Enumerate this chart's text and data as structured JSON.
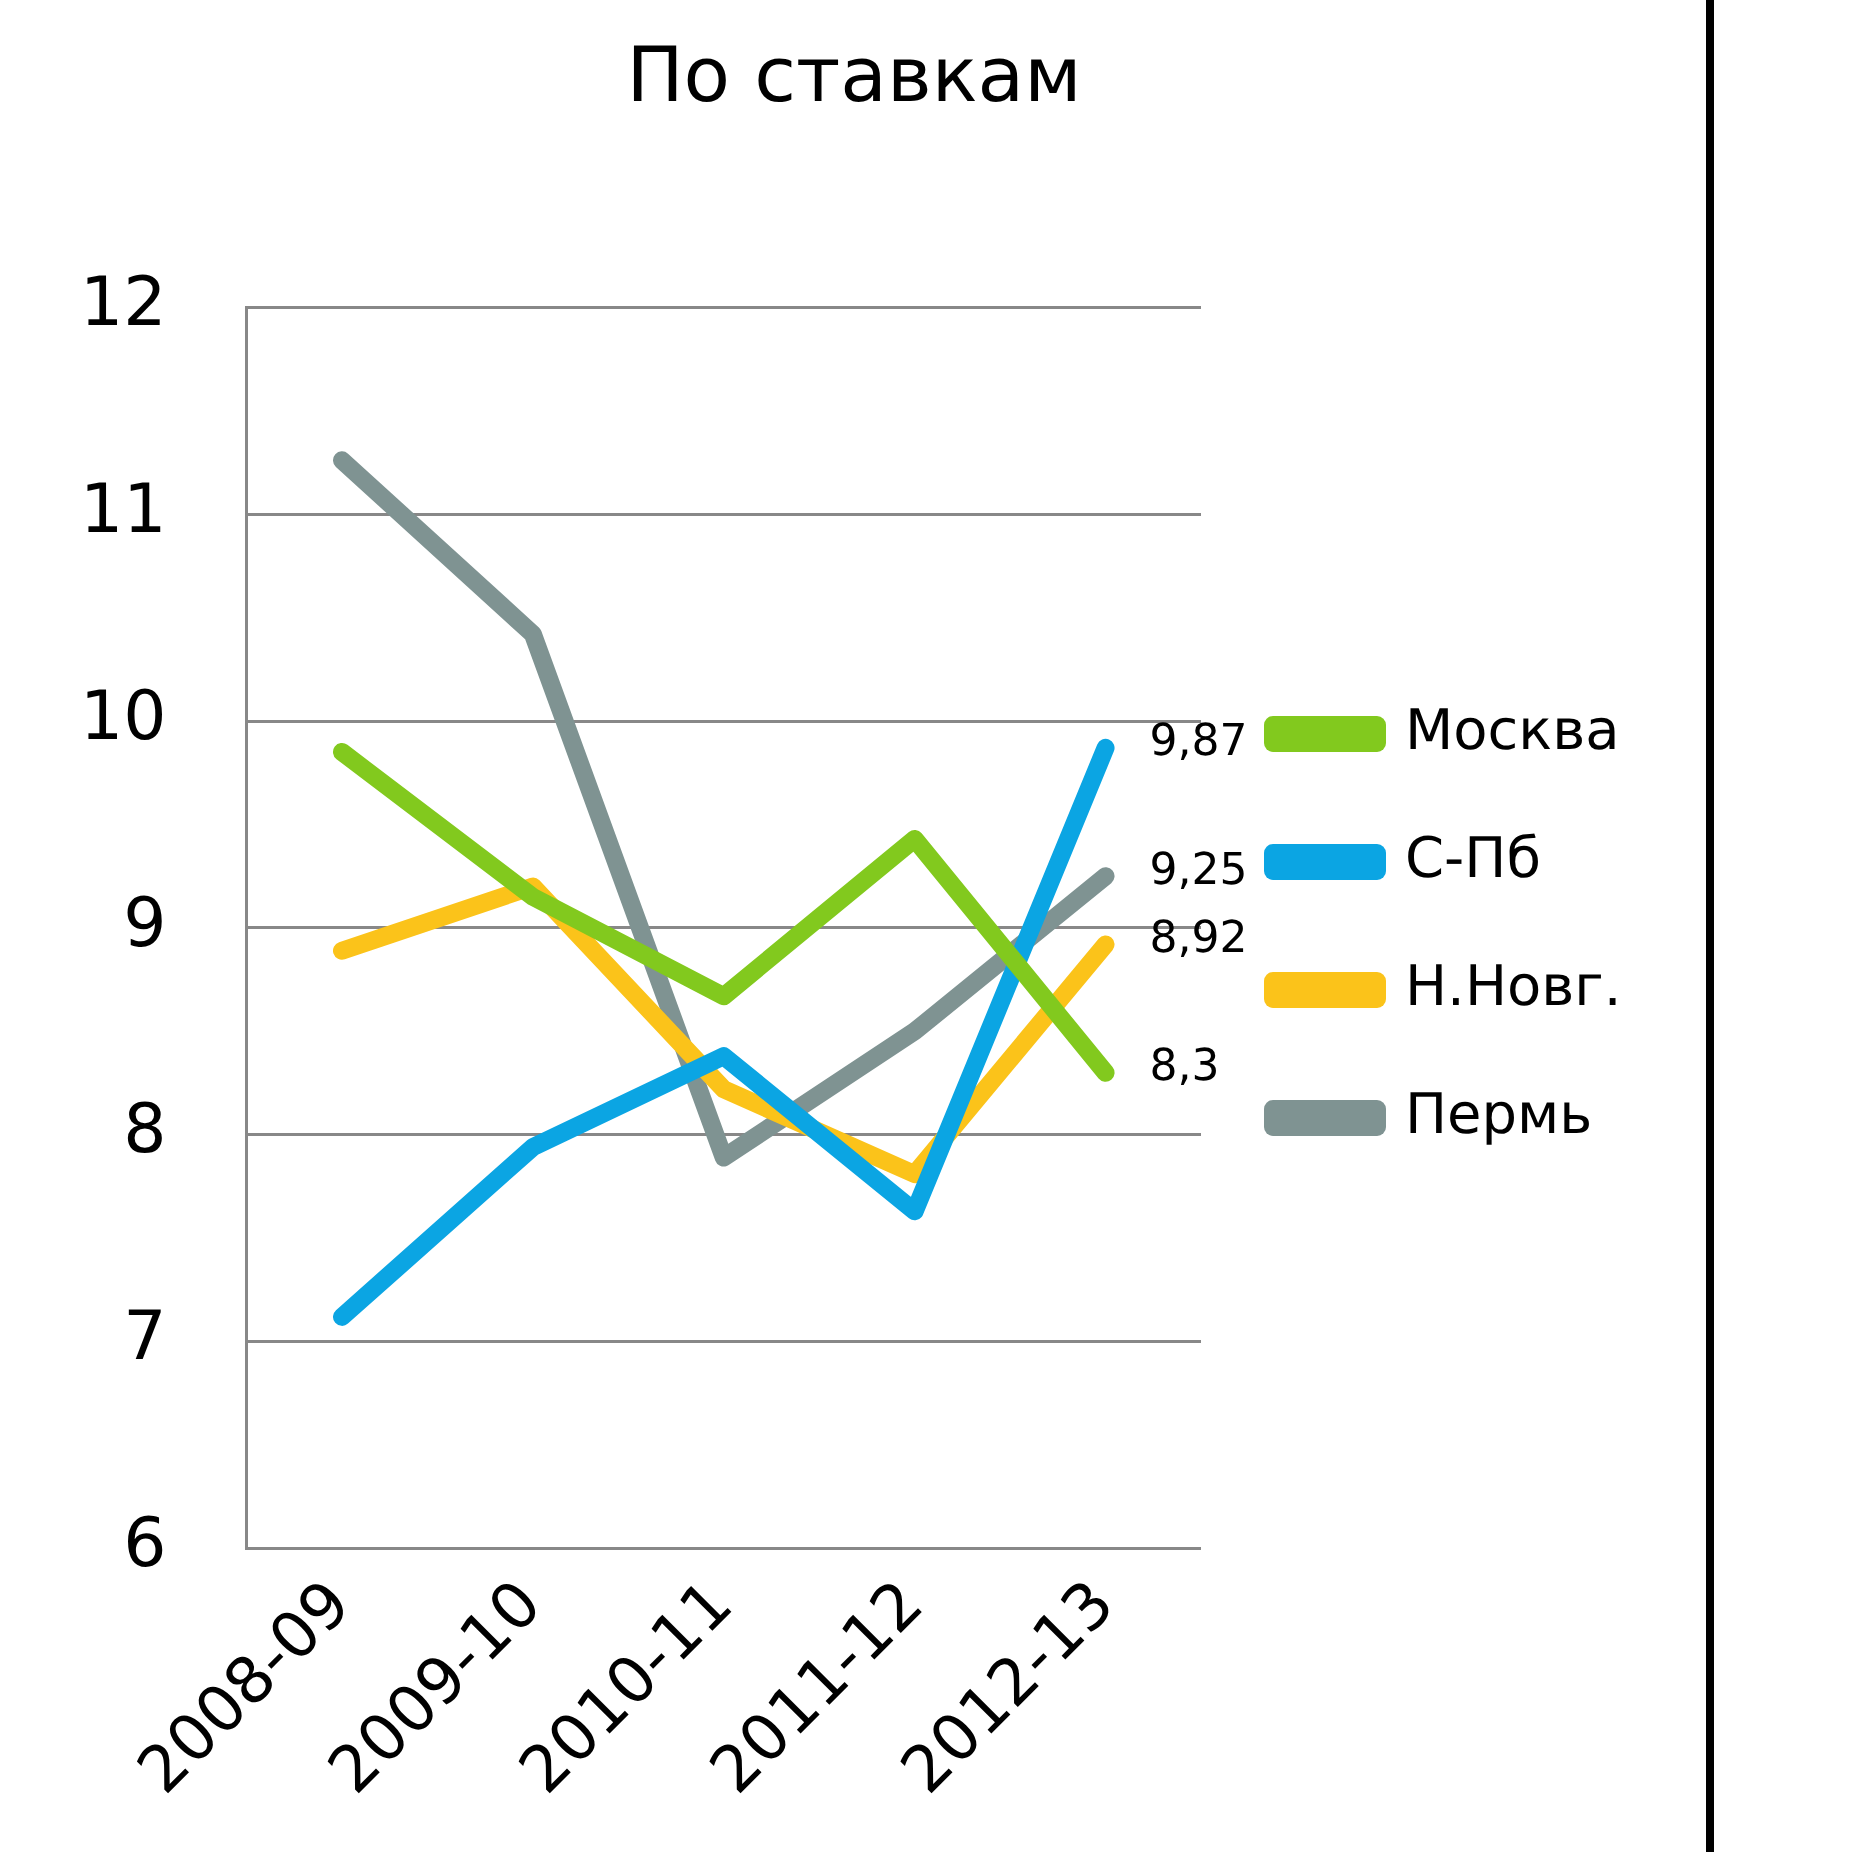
{
  "chart_data": {
    "type": "line",
    "title": "По ставкам",
    "categories": [
      "2008-09",
      "2009-10",
      "2010-11",
      "2011-12",
      "2012-13"
    ],
    "series": [
      {
        "name": "Москва",
        "color": "#82c91e",
        "values": [
          9.85,
          9.15,
          8.67,
          9.43,
          8.3
        ],
        "value_labels": [
          null,
          null,
          null,
          null,
          "8,3"
        ]
      },
      {
        "name": "С-Пб",
        "color": "#0ba5e3",
        "values": [
          7.12,
          7.94,
          8.38,
          7.63,
          9.87
        ],
        "value_labels": [
          null,
          null,
          null,
          null,
          "9,87"
        ]
      },
      {
        "name": "Н.Новг.",
        "color": "#fbc31a",
        "values": [
          8.89,
          9.2,
          8.22,
          7.81,
          8.92
        ],
        "value_labels": [
          null,
          null,
          null,
          null,
          "8,92"
        ]
      },
      {
        "name": "Пермь",
        "color": "#7f9392",
        "values": [
          11.26,
          10.42,
          7.89,
          8.5,
          9.25
        ],
        "value_labels": [
          null,
          null,
          null,
          null,
          "9,25"
        ]
      }
    ],
    "ylim": [
      6,
      12
    ],
    "yticks": [
      6,
      7,
      8,
      9,
      10,
      11,
      12
    ],
    "grid": "y",
    "legend": "right",
    "marker": "none",
    "line_style": "solid"
  }
}
